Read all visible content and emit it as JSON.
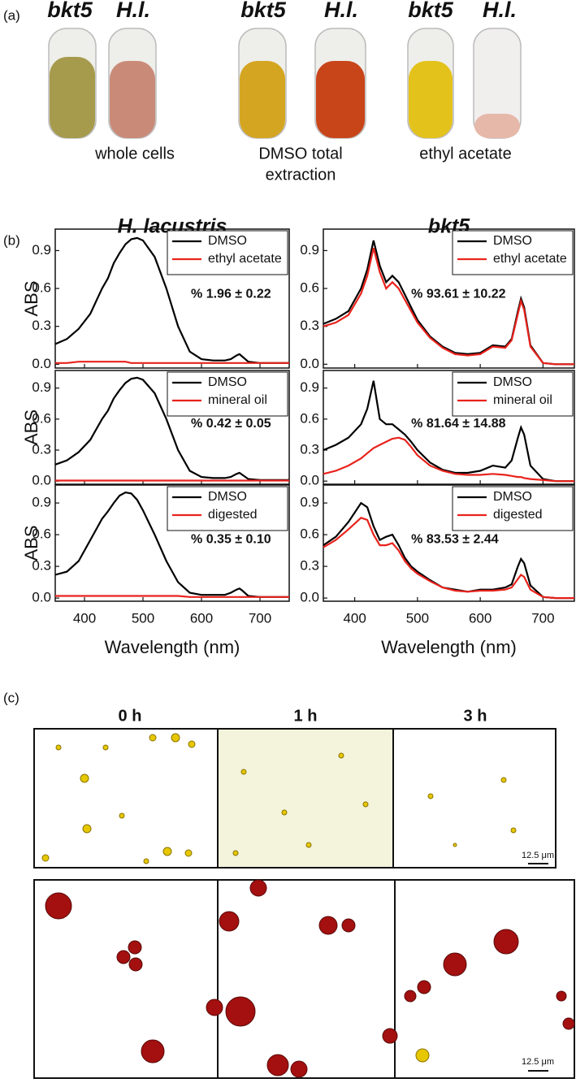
{
  "panel_a": {
    "label": "(a)",
    "tube_labels": [
      "bkt5",
      "H.l.",
      "bkt5",
      "H.l.",
      "bkt5",
      "H.l."
    ],
    "captions": [
      [
        "whole cells"
      ],
      [
        "DMSO total",
        "extraction"
      ],
      [
        "ethyl acetate"
      ]
    ]
  },
  "panel_b": {
    "label": "(b)"
  },
  "panel_c": {
    "label": "(c)",
    "times": [
      "0 h",
      "1 h",
      "3 h"
    ],
    "scale_bars": [
      "12.5 μm",
      "12.5 μm"
    ]
  },
  "chart_data": [
    {
      "type": "line",
      "title": "H. lacustris",
      "ylabel": "ABS",
      "annotation": "% 1.96 ± 0.22",
      "annotation_color": "#e8231c",
      "legend": "upper right",
      "x": [
        350,
        370,
        390,
        410,
        420,
        430,
        440,
        450,
        460,
        470,
        480,
        490,
        500,
        520,
        540,
        560,
        580,
        600,
        620,
        640,
        650,
        660,
        665,
        670,
        680,
        700,
        720,
        750
      ],
      "series": [
        {
          "name": "DMSO",
          "color": "#000000",
          "values": [
            0.16,
            0.2,
            0.28,
            0.4,
            0.5,
            0.6,
            0.68,
            0.8,
            0.88,
            0.95,
            0.99,
            1.0,
            0.98,
            0.85,
            0.6,
            0.3,
            0.1,
            0.04,
            0.03,
            0.03,
            0.04,
            0.07,
            0.08,
            0.06,
            0.02,
            0.01,
            0.01,
            0.01
          ]
        },
        {
          "name": "ethyl acetate",
          "color": "#e8231c",
          "values": [
            0.01,
            0.01,
            0.02,
            0.02,
            0.02,
            0.02,
            0.02,
            0.02,
            0.02,
            0.02,
            0.01,
            0.01,
            0.01,
            0.01,
            0.01,
            0.01,
            0.01,
            0.01,
            0.01,
            0.01,
            0.01,
            0.01,
            0.01,
            0.01,
            0.01,
            0.01,
            0.01,
            0.01
          ]
        }
      ],
      "xlim": [
        350,
        750
      ],
      "xticks": [
        400,
        500,
        600,
        700
      ],
      "ylim": [
        -0.03,
        1.07
      ],
      "yticks": [
        {
          "value": 0,
          "label": "0.0"
        },
        0.3,
        0.6,
        0.9
      ]
    },
    {
      "type": "line",
      "title": "bkt5",
      "annotation": "% 93.61 ± 10.22",
      "annotation_color": "#e8231c",
      "legend": "upper right",
      "x": [
        350,
        370,
        390,
        410,
        420,
        430,
        440,
        450,
        460,
        470,
        480,
        490,
        500,
        520,
        540,
        560,
        580,
        600,
        620,
        640,
        650,
        660,
        665,
        670,
        680,
        700,
        720,
        750
      ],
      "series": [
        {
          "name": "DMSO",
          "color": "#000000",
          "values": [
            0.32,
            0.36,
            0.42,
            0.6,
            0.75,
            0.98,
            0.78,
            0.65,
            0.7,
            0.65,
            0.55,
            0.45,
            0.35,
            0.22,
            0.14,
            0.09,
            0.08,
            0.09,
            0.15,
            0.14,
            0.2,
            0.42,
            0.52,
            0.45,
            0.15,
            0.01,
            0,
            0
          ]
        },
        {
          "name": "ethyl acetate",
          "color": "#e8231c",
          "values": [
            0.3,
            0.33,
            0.39,
            0.56,
            0.7,
            0.92,
            0.73,
            0.6,
            0.65,
            0.6,
            0.51,
            0.42,
            0.33,
            0.21,
            0.13,
            0.08,
            0.07,
            0.08,
            0.14,
            0.13,
            0.19,
            0.4,
            0.5,
            0.43,
            0.14,
            0.01,
            0,
            0
          ]
        }
      ],
      "xlim": [
        350,
        750
      ],
      "xticks": [
        400,
        500,
        600,
        700
      ],
      "ylim": [
        -0.03,
        1.07
      ],
      "yticks": [
        {
          "value": 0,
          "label": "0.0"
        },
        0.3,
        0.6,
        0.9
      ]
    },
    {
      "type": "line",
      "ylabel": "ABS",
      "annotation": "% 0.42 ± 0.05",
      "annotation_color": "#e8231c",
      "legend": "upper right",
      "x": [
        350,
        370,
        390,
        410,
        420,
        430,
        440,
        450,
        460,
        470,
        480,
        490,
        500,
        520,
        540,
        560,
        580,
        600,
        620,
        640,
        650,
        660,
        665,
        670,
        680,
        700,
        720,
        750
      ],
      "series": [
        {
          "name": "DMSO",
          "color": "#000000",
          "values": [
            0.16,
            0.2,
            0.28,
            0.4,
            0.5,
            0.6,
            0.68,
            0.8,
            0.88,
            0.95,
            0.99,
            1.0,
            0.98,
            0.85,
            0.6,
            0.3,
            0.1,
            0.04,
            0.03,
            0.03,
            0.04,
            0.07,
            0.08,
            0.06,
            0.02,
            0.01,
            0.01,
            0.01
          ]
        },
        {
          "name": "mineral oil",
          "color": "#e8231c",
          "values": [
            0.005,
            0.005,
            0.005,
            0.005,
            0.005,
            0.005,
            0.005,
            0.005,
            0.005,
            0.005,
            0.005,
            0.005,
            0.005,
            0.005,
            0.005,
            0.005,
            0.005,
            0.005,
            0.005,
            0.005,
            0.005,
            0.005,
            0.005,
            0.005,
            0.005,
            0.005,
            0.005,
            0.005
          ]
        }
      ],
      "xlim": [
        350,
        750
      ],
      "xticks": [
        400,
        500,
        600,
        700
      ],
      "ylim": [
        -0.03,
        1.07
      ],
      "yticks": [
        {
          "value": 0,
          "label": "0.0"
        },
        0.3,
        0.6,
        0.9
      ]
    },
    {
      "type": "line",
      "annotation": "% 81.64 ± 14.88",
      "annotation_color": "#e8231c",
      "legend": "upper right",
      "x": [
        350,
        370,
        390,
        410,
        420,
        430,
        440,
        450,
        460,
        470,
        480,
        490,
        500,
        520,
        540,
        560,
        580,
        600,
        620,
        640,
        650,
        660,
        665,
        670,
        680,
        700,
        720,
        750
      ],
      "series": [
        {
          "name": "DMSO",
          "color": "#000000",
          "values": [
            0.3,
            0.35,
            0.42,
            0.55,
            0.7,
            0.97,
            0.6,
            0.55,
            0.55,
            0.5,
            0.45,
            0.38,
            0.3,
            0.18,
            0.11,
            0.08,
            0.08,
            0.1,
            0.15,
            0.13,
            0.2,
            0.42,
            0.52,
            0.45,
            0.15,
            0.02,
            0,
            0
          ]
        },
        {
          "name": "mineral oil",
          "color": "#e8231c",
          "values": [
            0.07,
            0.1,
            0.15,
            0.22,
            0.27,
            0.32,
            0.35,
            0.38,
            0.41,
            0.42,
            0.4,
            0.33,
            0.25,
            0.15,
            0.1,
            0.07,
            0.06,
            0.06,
            0.07,
            0.06,
            0.05,
            0.04,
            0.04,
            0.03,
            0.02,
            0.01,
            0,
            0
          ]
        }
      ],
      "xlim": [
        350,
        750
      ],
      "xticks": [
        400,
        500,
        600,
        700
      ],
      "ylim": [
        -0.03,
        1.07
      ],
      "yticks": [
        {
          "value": 0,
          "label": "0.0"
        },
        0.3,
        0.6,
        0.9
      ]
    },
    {
      "type": "line",
      "ylabel": "ABS",
      "xlabel": "Wavelength (nm)",
      "annotation": "% 0.35 ± 0.10",
      "annotation_color": "#e8231c",
      "legend": "upper right",
      "x": [
        350,
        370,
        390,
        410,
        420,
        430,
        440,
        450,
        460,
        470,
        480,
        490,
        500,
        520,
        540,
        560,
        580,
        600,
        620,
        640,
        650,
        660,
        665,
        670,
        680,
        700,
        720,
        750
      ],
      "series": [
        {
          "name": "DMSO",
          "color": "#000000",
          "values": [
            0.22,
            0.25,
            0.35,
            0.55,
            0.65,
            0.75,
            0.82,
            0.9,
            0.97,
            1.0,
            0.99,
            0.93,
            0.83,
            0.6,
            0.35,
            0.15,
            0.05,
            0.03,
            0.03,
            0.03,
            0.05,
            0.08,
            0.09,
            0.07,
            0.02,
            0.01,
            0.01,
            0.01
          ]
        },
        {
          "name": "digested",
          "color": "#e8231c",
          "values": [
            0.02,
            0.02,
            0.02,
            0.02,
            0.02,
            0.02,
            0.02,
            0.02,
            0.02,
            0.02,
            0.02,
            0.02,
            0.02,
            0.02,
            0.02,
            0.02,
            0.01,
            0.01,
            0.01,
            0.01,
            0.01,
            0.01,
            0.01,
            0.01,
            0.01,
            0.01,
            0.01,
            0.01
          ]
        }
      ],
      "xlim": [
        350,
        750
      ],
      "xticks": [
        400,
        500,
        600,
        700
      ],
      "ylim": [
        -0.03,
        1.07
      ],
      "yticks": [
        {
          "value": 0,
          "label": "0.0"
        },
        0.3,
        0.6,
        0.9
      ]
    },
    {
      "type": "line",
      "xlabel": "Wavelength (nm)",
      "annotation": "% 83.53 ± 2.44",
      "annotation_color": "#e8231c",
      "legend": "upper right",
      "x": [
        350,
        370,
        390,
        410,
        420,
        430,
        440,
        450,
        460,
        470,
        480,
        490,
        500,
        520,
        540,
        560,
        580,
        600,
        620,
        640,
        650,
        660,
        665,
        670,
        680,
        700,
        720,
        750
      ],
      "series": [
        {
          "name": "DMSO",
          "color": "#000000",
          "values": [
            0.5,
            0.58,
            0.72,
            0.9,
            0.86,
            0.68,
            0.55,
            0.58,
            0.6,
            0.5,
            0.38,
            0.3,
            0.25,
            0.17,
            0.1,
            0.08,
            0.06,
            0.08,
            0.08,
            0.1,
            0.13,
            0.3,
            0.37,
            0.33,
            0.12,
            0.01,
            0,
            0
          ]
        },
        {
          "name": "digested",
          "color": "#e8231c",
          "values": [
            0.48,
            0.55,
            0.65,
            0.76,
            0.74,
            0.6,
            0.5,
            0.5,
            0.52,
            0.45,
            0.35,
            0.28,
            0.23,
            0.16,
            0.1,
            0.07,
            0.06,
            0.07,
            0.07,
            0.08,
            0.1,
            0.18,
            0.22,
            0.2,
            0.08,
            0.01,
            0,
            0
          ]
        }
      ],
      "xlim": [
        350,
        750
      ],
      "xticks": [
        400,
        500,
        600,
        700
      ],
      "ylim": [
        -0.03,
        1.07
      ],
      "yticks": [
        {
          "value": 0,
          "label": "0.0"
        },
        0.3,
        0.6,
        0.9
      ]
    }
  ]
}
